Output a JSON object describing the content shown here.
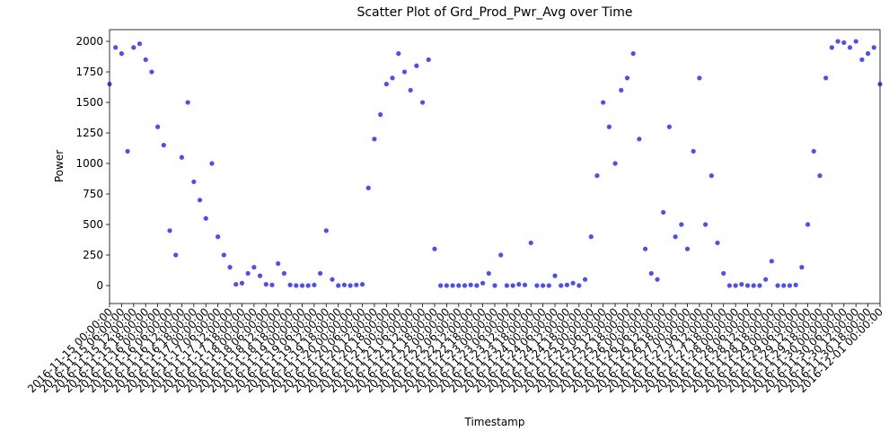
{
  "chart_data": {
    "type": "scatter",
    "title": "Scatter Plot of Grd_Prod_Pwr_Avg over Time",
    "x_label": "Timestamp",
    "y_label": "Power",
    "color": "#0000ff",
    "x": [
      "2016-11-15 00:00:00",
      "2016-11-15 03:00:00",
      "2016-11-15 06:00:00",
      "2016-11-15 09:00:00",
      "2016-11-15 12:00:00",
      "2016-11-15 15:00:00",
      "2016-11-15 18:00:00",
      "2016-11-15 21:00:00",
      "2016-11-16 00:00:00",
      "2016-11-16 03:00:00",
      "2016-11-16 06:00:00",
      "2016-11-16 09:00:00",
      "2016-11-16 12:00:00",
      "2016-11-16 15:00:00",
      "2016-11-16 18:00:00",
      "2016-11-16 21:00:00",
      "2016-11-17 00:00:00",
      "2016-11-17 03:00:00",
      "2016-11-17 06:00:00",
      "2016-11-17 09:00:00",
      "2016-11-17 12:00:00",
      "2016-11-17 15:00:00",
      "2016-11-17 18:00:00",
      "2016-11-17 21:00:00",
      "2016-11-18 00:00:00",
      "2016-11-18 03:00:00",
      "2016-11-18 06:00:00",
      "2016-11-18 09:00:00",
      "2016-11-18 12:00:00",
      "2016-11-18 15:00:00",
      "2016-11-18 18:00:00",
      "2016-11-18 21:00:00",
      "2016-11-19 00:00:00",
      "2016-11-19 03:00:00",
      "2016-11-19 06:00:00",
      "2016-11-19 09:00:00",
      "2016-11-19 12:00:00",
      "2016-11-19 15:00:00",
      "2016-11-19 18:00:00",
      "2016-11-19 21:00:00",
      "2016-11-20 00:00:00",
      "2016-11-20 03:00:00",
      "2016-11-20 06:00:00",
      "2016-11-20 09:00:00",
      "2016-11-20 12:00:00",
      "2016-11-20 15:00:00",
      "2016-11-20 18:00:00",
      "2016-11-20 21:00:00",
      "2016-11-21 00:00:00",
      "2016-11-21 03:00:00",
      "2016-11-21 06:00:00",
      "2016-11-21 09:00:00",
      "2016-11-21 12:00:00",
      "2016-11-21 15:00:00",
      "2016-11-21 18:00:00",
      "2016-11-21 21:00:00",
      "2016-11-22 00:00:00",
      "2016-11-22 03:00:00",
      "2016-11-22 06:00:00",
      "2016-11-22 09:00:00",
      "2016-11-22 12:00:00",
      "2016-11-22 15:00:00",
      "2016-11-22 18:00:00",
      "2016-11-22 21:00:00",
      "2016-11-23 00:00:00",
      "2016-11-23 03:00:00",
      "2016-11-23 06:00:00",
      "2016-11-23 09:00:00",
      "2016-11-23 12:00:00",
      "2016-11-23 15:00:00",
      "2016-11-23 18:00:00",
      "2016-11-23 21:00:00",
      "2016-11-24 00:00:00",
      "2016-11-24 03:00:00",
      "2016-11-24 06:00:00",
      "2016-11-24 09:00:00",
      "2016-11-24 12:00:00",
      "2016-11-24 15:00:00",
      "2016-11-24 18:00:00",
      "2016-11-24 21:00:00",
      "2016-11-25 00:00:00",
      "2016-11-25 03:00:00",
      "2016-11-25 06:00:00",
      "2016-11-25 09:00:00",
      "2016-11-25 12:00:00",
      "2016-11-25 15:00:00",
      "2016-11-25 18:00:00",
      "2016-11-25 21:00:00",
      "2016-11-26 00:00:00",
      "2016-11-26 03:00:00",
      "2016-11-26 06:00:00",
      "2016-11-26 09:00:00",
      "2016-11-26 12:00:00",
      "2016-11-26 15:00:00",
      "2016-11-26 18:00:00",
      "2016-11-26 21:00:00",
      "2016-11-27 00:00:00",
      "2016-11-27 03:00:00",
      "2016-11-27 06:00:00",
      "2016-11-27 09:00:00",
      "2016-11-27 12:00:00",
      "2016-11-27 15:00:00",
      "2016-11-27 18:00:00",
      "2016-11-27 21:00:00",
      "2016-11-28 00:00:00",
      "2016-11-28 03:00:00",
      "2016-11-28 06:00:00",
      "2016-11-28 09:00:00",
      "2016-11-28 12:00:00",
      "2016-11-28 15:00:00",
      "2016-11-28 18:00:00",
      "2016-11-28 21:00:00",
      "2016-11-29 00:00:00",
      "2016-11-29 03:00:00",
      "2016-11-29 06:00:00",
      "2016-11-29 09:00:00",
      "2016-11-29 12:00:00",
      "2016-11-29 15:00:00",
      "2016-11-29 18:00:00",
      "2016-11-29 21:00:00",
      "2016-11-30 00:00:00",
      "2016-11-30 03:00:00",
      "2016-11-30 06:00:00",
      "2016-11-30 09:00:00",
      "2016-11-30 12:00:00",
      "2016-11-30 15:00:00",
      "2016-11-30 18:00:00",
      "2016-11-30 21:00:00",
      "2016-12-01 00:00:00"
    ],
    "values": [
      1650,
      1950,
      1900,
      1100,
      1950,
      1980,
      1850,
      1750,
      1300,
      1150,
      450,
      250,
      1050,
      1500,
      850,
      700,
      550,
      1000,
      400,
      250,
      150,
      10,
      20,
      100,
      150,
      80,
      10,
      5,
      180,
      100,
      5,
      0,
      0,
      0,
      5,
      100,
      450,
      50,
      0,
      5,
      0,
      5,
      10,
      800,
      1200,
      1400,
      1650,
      1700,
      1900,
      1750,
      1600,
      1800,
      1500,
      1850,
      300,
      0,
      0,
      0,
      0,
      0,
      5,
      0,
      20,
      100,
      0,
      250,
      0,
      0,
      10,
      5,
      350,
      0,
      0,
      0,
      80,
      0,
      5,
      20,
      0,
      50,
      400,
      900,
      1500,
      1300,
      1000,
      1600,
      1700,
      1900,
      1200,
      300,
      100,
      50,
      600,
      1300,
      400,
      500,
      300,
      1100,
      1700,
      500,
      900,
      350,
      100,
      0,
      0,
      10,
      0,
      0,
      0,
      50,
      200,
      0,
      0,
      0,
      5,
      150,
      500,
      1100,
      900,
      1700,
      1950,
      2000,
      1990,
      1950,
      2000,
      1850,
      1900,
      1950,
      1650
    ],
    "xlim": [
      "2016-11-15 00:00:00",
      "2016-12-01 00:00:00"
    ],
    "xticks": [
      "2016-11-15 00:00:00",
      "2016-11-15 06:00:00",
      "2016-11-15 12:00:00",
      "2016-11-15 18:00:00",
      "2016-11-16 00:00:00",
      "2016-11-16 06:00:00",
      "2016-11-16 12:00:00",
      "2016-11-16 18:00:00",
      "2016-11-17 00:00:00",
      "2016-11-17 06:00:00",
      "2016-11-17 12:00:00",
      "2016-11-17 18:00:00",
      "2016-11-18 00:00:00",
      "2016-11-18 06:00:00",
      "2016-11-18 12:00:00",
      "2016-11-18 18:00:00",
      "2016-11-19 00:00:00",
      "2016-11-19 06:00:00",
      "2016-11-19 12:00:00",
      "2016-11-19 18:00:00",
      "2016-11-20 00:00:00",
      "2016-11-20 06:00:00",
      "2016-11-20 12:00:00",
      "2016-11-20 18:00:00",
      "2016-11-21 00:00:00",
      "2016-11-21 06:00:00",
      "2016-11-21 12:00:00",
      "2016-11-21 18:00:00",
      "2016-11-22 00:00:00",
      "2016-11-22 06:00:00",
      "2016-11-22 12:00:00",
      "2016-11-22 18:00:00",
      "2016-11-23 00:00:00",
      "2016-11-23 06:00:00",
      "2016-11-23 12:00:00",
      "2016-11-23 18:00:00",
      "2016-11-24 00:00:00",
      "2016-11-24 06:00:00",
      "2016-11-24 12:00:00",
      "2016-11-24 18:00:00",
      "2016-11-25 00:00:00",
      "2016-11-25 06:00:00",
      "2016-11-25 12:00:00",
      "2016-11-25 18:00:00",
      "2016-11-26 00:00:00",
      "2016-11-26 06:00:00",
      "2016-11-26 12:00:00",
      "2016-11-26 18:00:00",
      "2016-11-27 00:00:00",
      "2016-11-27 06:00:00",
      "2016-11-27 12:00:00",
      "2016-11-27 18:00:00",
      "2016-11-28 00:00:00",
      "2016-11-28 06:00:00",
      "2016-11-28 12:00:00",
      "2016-11-28 18:00:00",
      "2016-11-29 00:00:00",
      "2016-11-29 06:00:00",
      "2016-11-29 12:00:00",
      "2016-11-29 18:00:00",
      "2016-11-30 00:00:00",
      "2016-11-30 06:00:00",
      "2016-11-30 12:00:00",
      "2016-11-30 18:00:00",
      "2016-12-01 00:00:00"
    ],
    "ylim": [
      -147,
      2096
    ],
    "yticks": [
      0,
      250,
      500,
      750,
      1000,
      1250,
      1500,
      1750,
      2000
    ],
    "grid": false
  }
}
